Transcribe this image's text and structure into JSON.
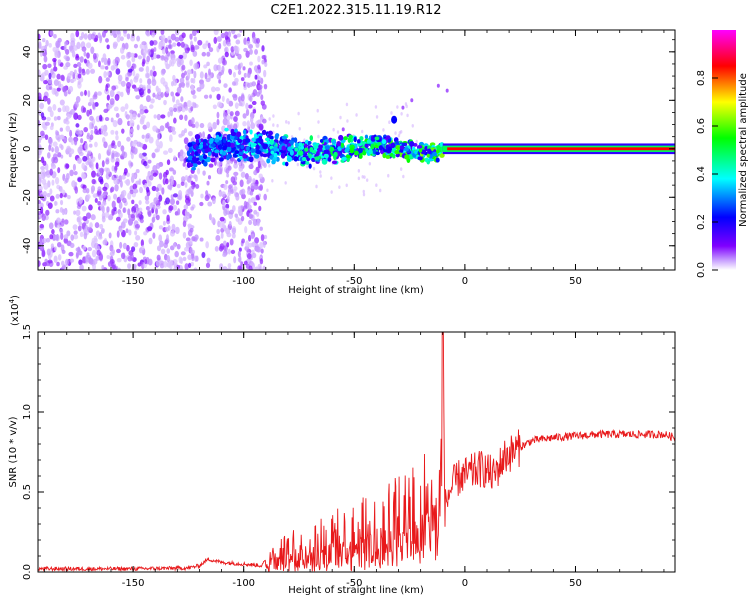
{
  "title": "C2E1.2022.315.11.19.R12",
  "chart_data": [
    {
      "type": "heatmap",
      "xlabel": "Height of straight line (km)",
      "ylabel": "Frequency (Hz)",
      "xlim": [
        -193,
        95
      ],
      "ylim": [
        -50,
        49
      ],
      "x_ticks": [
        -150,
        -100,
        -50,
        0,
        50
      ],
      "x_tick_labels": [
        "-150",
        "-100",
        "-50",
        "0",
        "50"
      ],
      "y_ticks": [
        -40,
        -20,
        0,
        20,
        40
      ],
      "y_tick_labels": [
        "-40",
        "-20",
        "0",
        "20",
        "40"
      ],
      "colorbar": {
        "label": "Normalized spectral amplitude",
        "range": [
          0,
          1
        ],
        "ticks": [
          0.0,
          0.2,
          0.4,
          0.6,
          0.8
        ],
        "tick_labels": [
          "0.0",
          "0.2",
          "0.4",
          "0.6",
          "0.8"
        ],
        "colormap": [
          "#ffffff",
          "#7f00ff",
          "#0000ff",
          "#00ffff",
          "#00ff00",
          "#ffff00",
          "#ff0000",
          "#ff00ff"
        ]
      },
      "features": [
        {
          "description": "diffuse purple noise",
          "x_range": [
            -193,
            -90
          ],
          "freq_range": [
            -50,
            49
          ],
          "amplitude": 0.15
        },
        {
          "description": "broadened signal band",
          "x_range": [
            -125,
            -10
          ],
          "freq_center": 0,
          "freq_halfwidth": [
            8,
            4
          ],
          "amplitude": 0.4
        },
        {
          "description": "narrow strong carrier",
          "x_range": [
            -10,
            95
          ],
          "freq_center": 0,
          "freq_halfwidth": 2,
          "amplitude": 1.0
        },
        {
          "description": "isolated spot",
          "x": -32,
          "freq": 12,
          "amplitude": 0.25
        }
      ]
    },
    {
      "type": "line",
      "xlabel": "Height of straight line (km)",
      "ylabel": "SNR (10 * v/v)",
      "y_scale_label": "(x10",
      "y_scale_exp": "4",
      "y_scale_close": ")",
      "xlim": [
        -193,
        95
      ],
      "ylim": [
        0,
        1.5
      ],
      "x_ticks": [
        -150,
        -100,
        -50,
        0,
        50
      ],
      "x_tick_labels": [
        "-150",
        "-100",
        "-50",
        "0",
        "50"
      ],
      "y_ticks": [
        0,
        0.5,
        1.0,
        1.5
      ],
      "y_tick_labels": [
        "0.0",
        "0.5",
        "1.0",
        "1.5"
      ],
      "color": "#e8191b",
      "series": [
        {
          "x": [
            -193,
            -150,
            -125,
            -120,
            -116,
            -110,
            -100,
            -92,
            -88,
            -82,
            -75,
            -65,
            -55,
            -45,
            -35,
            -28,
            -22,
            -15,
            -11,
            -10,
            -9,
            -7,
            -5,
            -2,
            0,
            3,
            8,
            13,
            18,
            25,
            30,
            40,
            50,
            60,
            75,
            90,
            95
          ],
          "y": [
            0.02,
            0.02,
            0.025,
            0.04,
            0.08,
            0.06,
            0.05,
            0.04,
            0.1,
            0.12,
            0.15,
            0.2,
            0.22,
            0.25,
            0.3,
            0.35,
            0.38,
            0.45,
            0.5,
            1.55,
            0.4,
            0.5,
            0.55,
            0.6,
            0.6,
            0.62,
            0.65,
            0.6,
            0.72,
            0.78,
            0.82,
            0.84,
            0.85,
            0.86,
            0.86,
            0.86,
            0.84
          ]
        }
      ]
    }
  ]
}
